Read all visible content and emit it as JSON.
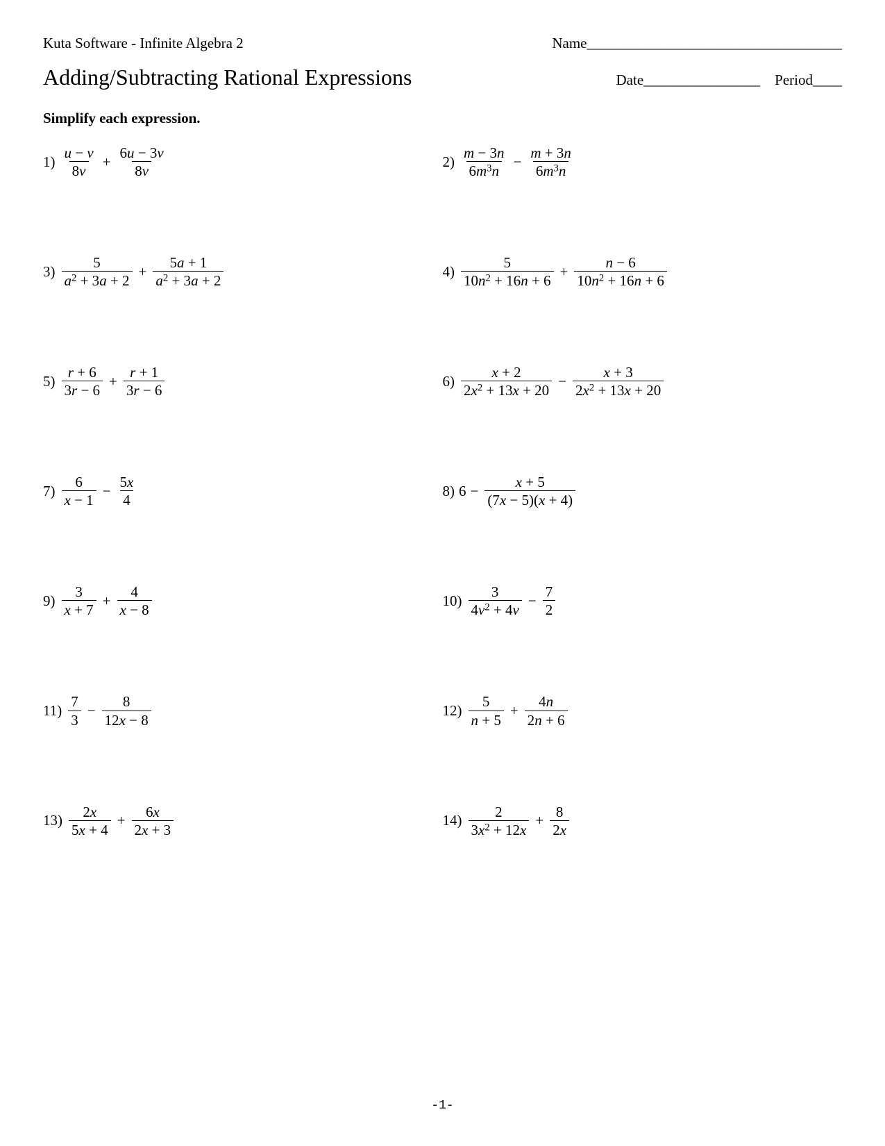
{
  "header": {
    "software": "Kuta Software - Infinite Algebra 2",
    "name_label": "Name___________________________________",
    "date_label": "Date________________",
    "period_label": "Period____"
  },
  "worksheet_title": "Adding/Subtracting Rational Expressions",
  "instruction": "Simplify each expression.",
  "footer_page": "-1-",
  "problems": [
    {
      "n": "1)",
      "t1n": "u − v",
      "t1d": "8v",
      "op": "+",
      "t2n": "6u − 3v",
      "t2d": "8v"
    },
    {
      "n": "2)",
      "t1n": "m − 3n",
      "t1d": "6m³n",
      "op": "−",
      "t2n": "m + 3n",
      "t2d": "6m³n"
    },
    {
      "n": "3)",
      "t1n": "5",
      "t1d": "a² + 3a + 2",
      "op": "+",
      "t2n": "5a + 1",
      "t2d": "a² + 3a + 2"
    },
    {
      "n": "4)",
      "t1n": "5",
      "t1d": "10n² + 16n + 6",
      "op": "+",
      "t2n": "n − 6",
      "t2d": "10n² + 16n + 6"
    },
    {
      "n": "5)",
      "t1n": "r + 6",
      "t1d": "3r − 6",
      "op": "+",
      "t2n": "r + 1",
      "t2d": "3r − 6"
    },
    {
      "n": "6)",
      "t1n": "x + 2",
      "t1d": "2x² + 13x + 20",
      "op": "−",
      "t2n": "x + 3",
      "t2d": "2x² + 13x + 20"
    },
    {
      "n": "7)",
      "t1n": "6",
      "t1d": "x − 1",
      "op": "−",
      "t2n": "5x",
      "t2d": "4"
    },
    {
      "n": "8)",
      "lead": "6",
      "op": "−",
      "t2n": "x + 5",
      "t2d": "(7x − 5)(x + 4)"
    },
    {
      "n": "9)",
      "t1n": "3",
      "t1d": "x + 7",
      "op": "+",
      "t2n": "4",
      "t2d": "x − 8"
    },
    {
      "n": "10)",
      "t1n": "3",
      "t1d": "4v² + 4v",
      "op": "−",
      "t2n": "7",
      "t2d": "2"
    },
    {
      "n": "11)",
      "t1n": "7",
      "t1d": "3",
      "op": "−",
      "t2n": "8",
      "t2d": "12x − 8"
    },
    {
      "n": "12)",
      "t1n": "5",
      "t1d": "n + 5",
      "op": "+",
      "t2n": "4n",
      "t2d": "2n + 6"
    },
    {
      "n": "13)",
      "t1n": "2x",
      "t1d": "5x + 4",
      "op": "+",
      "t2n": "6x",
      "t2d": "2x + 3"
    },
    {
      "n": "14)",
      "t1n": "2",
      "t1d": "3x² + 12x",
      "op": "+",
      "t2n": "8",
      "t2d": "2x"
    }
  ]
}
